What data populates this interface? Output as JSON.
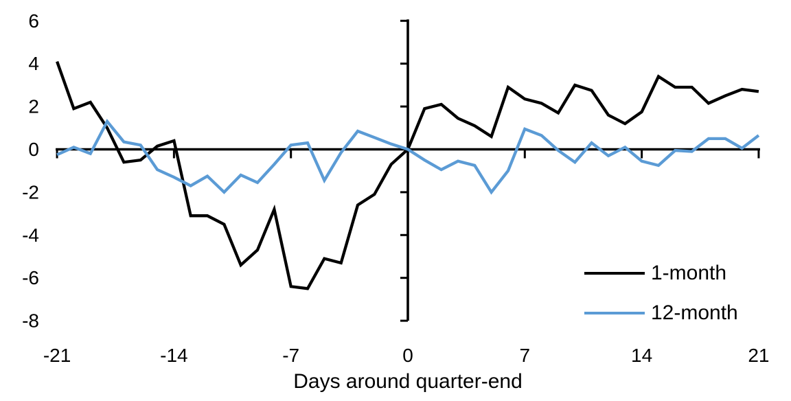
{
  "chart_data": {
    "type": "line",
    "title": "",
    "xlabel": "Days around quarter-end",
    "ylabel": "",
    "grid": false,
    "legend_position": "lower-right",
    "xlim": [
      -21,
      21
    ],
    "ylim": [
      -8,
      6
    ],
    "xticks": [
      -21,
      -14,
      -7,
      0,
      7,
      14,
      21
    ],
    "yticks": [
      6,
      4,
      2,
      0,
      -2,
      -4,
      -6,
      -8
    ],
    "x": [
      -21,
      -20,
      -19,
      -18,
      -17,
      -16,
      -15,
      -14,
      -13,
      -12,
      -11,
      -10,
      -9,
      -8,
      -7,
      -6,
      -5,
      -4,
      -3,
      -2,
      -1,
      0,
      1,
      2,
      3,
      4,
      5,
      6,
      7,
      8,
      9,
      10,
      11,
      12,
      13,
      14,
      15,
      16,
      17,
      18,
      19,
      20,
      21
    ],
    "series": [
      {
        "name": "1-month",
        "color": "#000000",
        "values": [
          4.1,
          1.9,
          2.2,
          1.0,
          -0.6,
          -0.5,
          0.15,
          0.4,
          -3.1,
          -3.1,
          -3.5,
          -5.4,
          -4.7,
          -2.8,
          -6.4,
          -6.5,
          -5.1,
          -5.3,
          -2.6,
          -2.1,
          -0.7,
          0.0,
          1.9,
          2.1,
          1.45,
          1.1,
          0.6,
          2.9,
          2.35,
          2.15,
          1.7,
          3.0,
          2.75,
          1.6,
          1.2,
          1.75,
          3.4,
          2.9,
          2.9,
          2.15,
          2.5,
          2.8,
          2.7
        ]
      },
      {
        "name": "12-month",
        "color": "#5B9BD5",
        "values": [
          -0.25,
          0.1,
          -0.2,
          1.3,
          0.35,
          0.2,
          -0.95,
          -1.3,
          -1.7,
          -1.25,
          -2.0,
          -1.2,
          -1.55,
          -0.7,
          0.2,
          0.3,
          -1.45,
          -0.15,
          0.85,
          0.55,
          0.25,
          0.0,
          -0.5,
          -0.95,
          -0.55,
          -0.75,
          -2.0,
          -1.0,
          0.95,
          0.65,
          -0.05,
          -0.6,
          0.3,
          -0.3,
          0.1,
          -0.55,
          -0.75,
          -0.05,
          -0.1,
          0.5,
          0.5,
          0.05,
          0.65
        ]
      }
    ],
    "axis_color": "#000000"
  }
}
